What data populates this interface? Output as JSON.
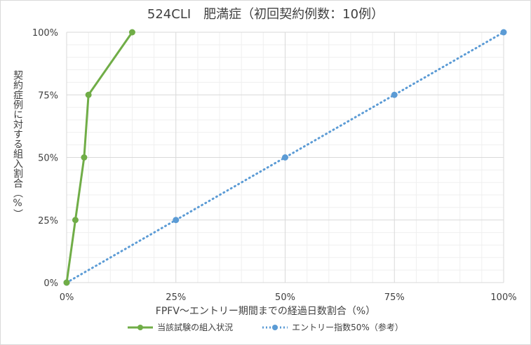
{
  "chart_data": {
    "type": "line",
    "title": "524CLI　肥満症（初回契約例数：10例）",
    "xlabel": "FPFV～エントリー期間までの経過日数割合（%）",
    "ylabel": "契約症例に対する組入割合（%）",
    "xlim": [
      0,
      100
    ],
    "ylim": [
      0,
      100
    ],
    "xticks": [
      "0%",
      "25%",
      "50%",
      "75%",
      "100%"
    ],
    "yticks": [
      "0%",
      "25%",
      "50%",
      "75%",
      "100%"
    ],
    "grid": true,
    "legend_position": "bottom",
    "series": [
      {
        "name": "当該試験の組入状況",
        "color": "#70ad47",
        "style": "solid",
        "x": [
          0,
          2,
          4,
          5,
          15
        ],
        "y": [
          0,
          25,
          50,
          75,
          100
        ]
      },
      {
        "name": "エントリー指数50%（参考）",
        "color": "#5b9bd5",
        "style": "dotted",
        "x": [
          0,
          25,
          50,
          75,
          100
        ],
        "y": [
          0,
          25,
          50,
          75,
          100
        ]
      }
    ]
  }
}
